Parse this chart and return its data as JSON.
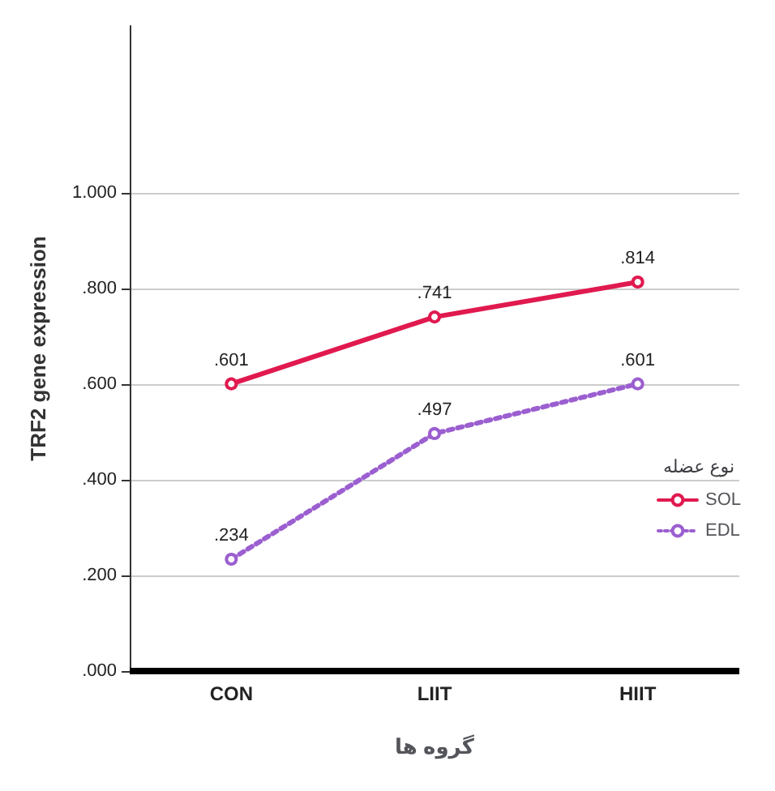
{
  "chart_data": {
    "type": "line",
    "xlabel": "گروه ها",
    "ylabel": "TRF2 gene expression",
    "legend_title": "نوع عضله",
    "categories": [
      "CON",
      "LIIT",
      "HIIT"
    ],
    "series": [
      {
        "name": "SOL",
        "color": "#e0194f",
        "values": [
          0.601,
          0.741,
          0.814
        ],
        "value_labels": [
          ".601",
          ".741",
          ".814"
        ],
        "line_style": "solid"
      },
      {
        "name": "EDL",
        "color": "#9b5fd0",
        "values": [
          0.234,
          0.497,
          0.601
        ],
        "value_labels": [
          ".234",
          ".497",
          ".601"
        ],
        "line_style": "dotted"
      }
    ],
    "ylim": [
      0,
      1.35
    ],
    "yticks": [
      {
        "value": 0,
        "label": ".000"
      },
      {
        "value": 0.2,
        "label": ".200"
      },
      {
        "value": 0.4,
        "label": ".400"
      },
      {
        "value": 0.6,
        "label": ".600"
      },
      {
        "value": 0.8,
        "label": ".800"
      },
      {
        "value": 1,
        "label": "1.000"
      }
    ],
    "grid": "y",
    "legend": "right",
    "marker": "circle"
  }
}
